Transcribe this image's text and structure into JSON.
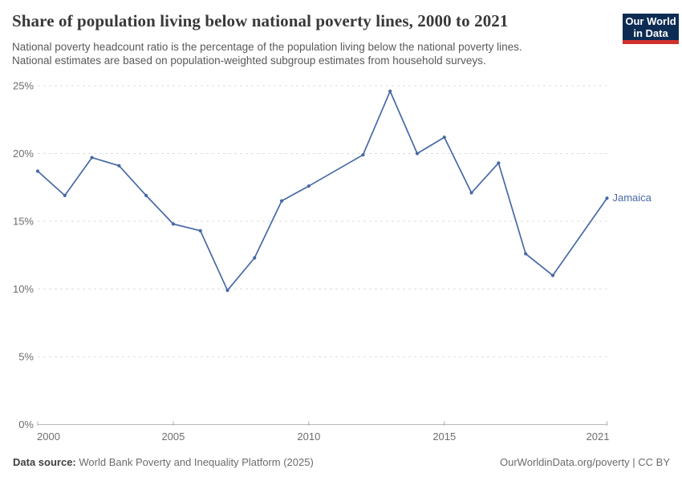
{
  "header": {
    "title": "Share of population living below national poverty lines, 2000 to 2021",
    "subtitle_lines": [
      "National poverty headcount ratio is the percentage of the population living below the national poverty lines.",
      "National estimates are based on population-weighted subgroup estimates from household surveys."
    ],
    "logo": {
      "line1": "Our World",
      "line2": "in Data",
      "bg_color": "#0d2c54",
      "accent_color": "#d0312d"
    }
  },
  "chart_data": {
    "type": "line",
    "title": "Share of population living below national poverty lines, 2000 to 2021",
    "xlabel": "",
    "ylabel": "",
    "xlim": [
      2000,
      2021
    ],
    "ylim": [
      0,
      25
    ],
    "x_ticks": [
      2000,
      2005,
      2010,
      2015,
      2021
    ],
    "y_ticks": [
      0,
      5,
      10,
      15,
      20,
      25
    ],
    "y_tick_suffix": "%",
    "grid": true,
    "legend_position": "line-end-label",
    "missing_years": [
      2011,
      2020
    ],
    "series": [
      {
        "name": "Jamaica",
        "color": "#4669a5",
        "points": [
          {
            "year": 2000,
            "value": 18.7
          },
          {
            "year": 2001,
            "value": 16.9
          },
          {
            "year": 2002,
            "value": 19.7
          },
          {
            "year": 2003,
            "value": 19.1
          },
          {
            "year": 2004,
            "value": 16.9
          },
          {
            "year": 2005,
            "value": 14.8
          },
          {
            "year": 2006,
            "value": 14.3
          },
          {
            "year": 2007,
            "value": 9.9
          },
          {
            "year": 2008,
            "value": 12.3
          },
          {
            "year": 2009,
            "value": 16.5
          },
          {
            "year": 2010,
            "value": 17.6
          },
          {
            "year": 2012,
            "value": 19.9
          },
          {
            "year": 2013,
            "value": 24.6
          },
          {
            "year": 2014,
            "value": 20.0
          },
          {
            "year": 2015,
            "value": 21.2
          },
          {
            "year": 2016,
            "value": 17.1
          },
          {
            "year": 2017,
            "value": 19.3
          },
          {
            "year": 2018,
            "value": 12.6
          },
          {
            "year": 2019,
            "value": 11.0
          },
          {
            "year": 2021,
            "value": 16.7
          }
        ]
      }
    ]
  },
  "footer": {
    "source_label": "Data source:",
    "source_text": "World Bank Poverty and Inequality Platform (2025)",
    "link_text": "OurWorldinData.org/poverty",
    "divider": "|",
    "license_text": "CC BY"
  }
}
